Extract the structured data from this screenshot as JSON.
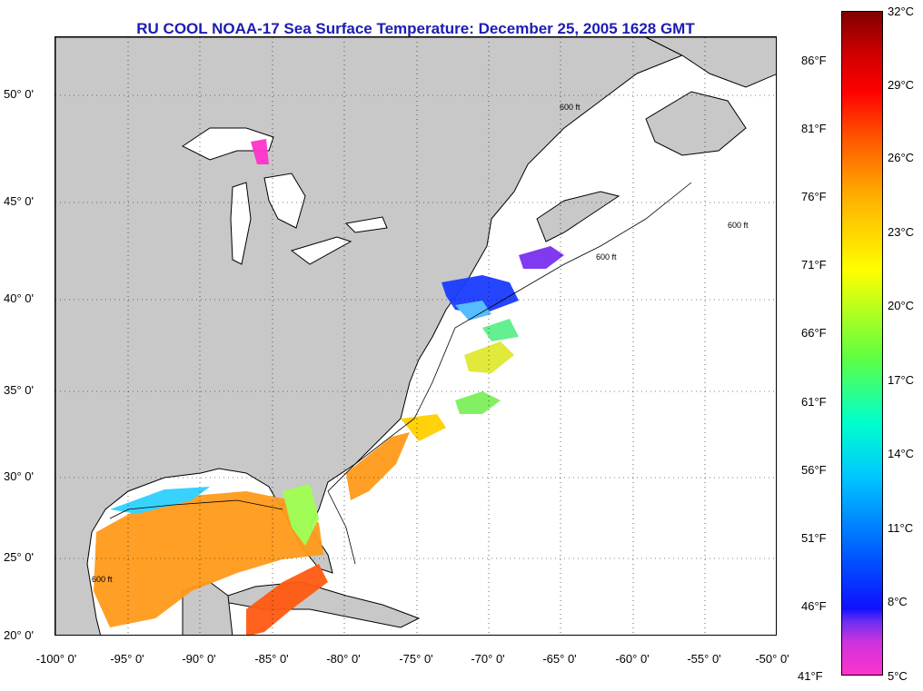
{
  "title": "RU COOL  NOAA-17  Sea Surface Temperature:  December 25, 2005 1628 GMT",
  "lat_labels": [
    "50° 0'",
    "45° 0'",
    "40° 0'",
    "35° 0'",
    "30° 0'",
    "25° 0'",
    "20° 0'"
  ],
  "lon_labels": [
    "-100° 0'",
    "-95° 0'",
    "-90° 0'",
    "-85° 0'",
    "-80° 0'",
    "-75° 0'",
    "-70° 0'",
    "-65° 0'",
    "-60° 0'",
    "-55° 0'",
    "-50° 0'"
  ],
  "colorbar": {
    "celsius": [
      "32°C",
      "29°C",
      "26°C",
      "23°C",
      "20°C",
      "17°C",
      "14°C",
      "11°C",
      "8°C",
      "5°C"
    ],
    "fahrenheit": [
      "86°F",
      "81°F",
      "76°F",
      "71°F",
      "66°F",
      "61°F",
      "56°F",
      "51°F",
      "46°F",
      "41°F"
    ]
  },
  "isobath_label": "600 ft",
  "colors": {
    "land": "#c8c8c8",
    "ocean": "#ffffff",
    "title": "#1c1cb4"
  }
}
